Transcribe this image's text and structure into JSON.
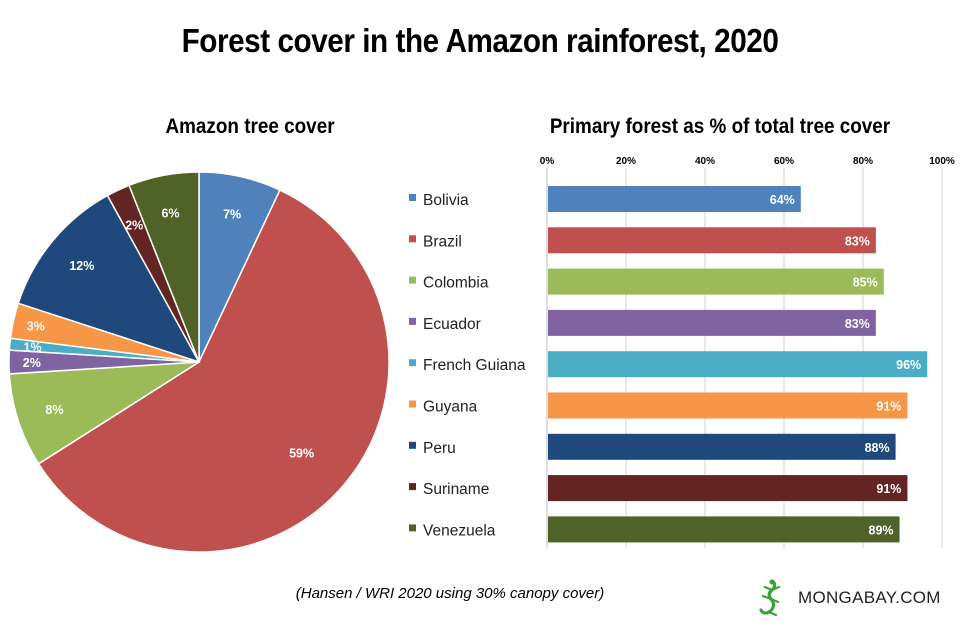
{
  "title": "Forest cover in the Amazon rainforest, 2020",
  "source_note": "(Hansen / WRI 2020 using 30% canopy cover)",
  "brand": {
    "name": "MONGABAY.COM",
    "logo_icon": "gecko-icon",
    "logo_color": "#3aa335"
  },
  "chart_data": [
    {
      "type": "pie",
      "title": "Amazon tree cover",
      "categories": [
        "Bolivia",
        "Brazil",
        "Colombia",
        "Ecuador",
        "French Guiana",
        "Guyana",
        "Peru",
        "Suriname",
        "Venezuela"
      ],
      "values": [
        7,
        59,
        8,
        2,
        1,
        3,
        12,
        2,
        6
      ],
      "labels": [
        "7%",
        "59%",
        "8%",
        "2%",
        "1%",
        "3%",
        "12%",
        "2%",
        "6%"
      ],
      "colors": [
        "#4f81bd",
        "#c0504d",
        "#9bbb59",
        "#8064a2",
        "#4bacc6",
        "#f79646",
        "#1f497d",
        "#632523",
        "#4f6228"
      ]
    },
    {
      "type": "bar",
      "orientation": "horizontal",
      "title": "Primary forest as % of total tree cover",
      "categories": [
        "Bolivia",
        "Brazil",
        "Colombia",
        "Ecuador",
        "French Guiana",
        "Guyana",
        "Peru",
        "Suriname",
        "Venezuela"
      ],
      "values": [
        64,
        83,
        85,
        83,
        96,
        91,
        88,
        91,
        89
      ],
      "labels": [
        "64%",
        "83%",
        "85%",
        "83%",
        "96%",
        "91%",
        "88%",
        "91%",
        "89%"
      ],
      "colors": [
        "#4f81bd",
        "#c0504d",
        "#9bbb59",
        "#8064a2",
        "#4bacc6",
        "#f79646",
        "#1f497d",
        "#632523",
        "#4f6228"
      ],
      "xlim": [
        0,
        100
      ],
      "x_ticks": [
        "0%",
        "20%",
        "40%",
        "60%",
        "80%",
        "100%"
      ],
      "grid": true,
      "legend": "left"
    }
  ]
}
